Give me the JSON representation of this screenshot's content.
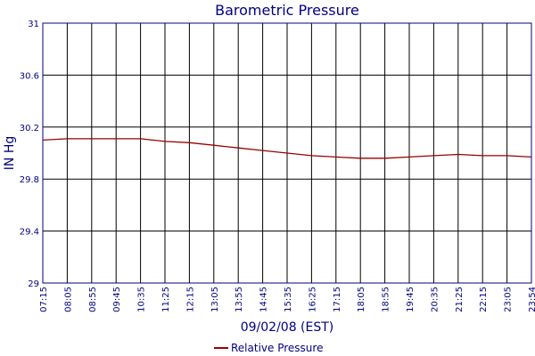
{
  "chart_data": {
    "type": "line",
    "title": "Barometric Pressure",
    "xlabel": "09/02/08 (EST)",
    "ylabel": "IN Hg",
    "x_ticks": [
      "07:15",
      "08:05",
      "08:55",
      "09:45",
      "10:35",
      "11:25",
      "12:15",
      "13:05",
      "13:55",
      "14:45",
      "15:35",
      "16:25",
      "17:15",
      "18:05",
      "18:55",
      "19:45",
      "20:35",
      "21:25",
      "22:15",
      "23:05",
      "23:54"
    ],
    "y_ticks": [
      "29",
      "29.4",
      "29.8",
      "30.2",
      "30.6",
      "31"
    ],
    "ylim": [
      29,
      31
    ],
    "grid": true,
    "legend_position": "bottom-center",
    "colors": {
      "series": "#990000",
      "axis": "#000080",
      "grid": "#000000"
    },
    "series": [
      {
        "name": "Relative Pressure",
        "x": [
          "07:15",
          "08:05",
          "08:55",
          "09:45",
          "10:35",
          "11:25",
          "12:15",
          "13:05",
          "13:55",
          "14:45",
          "15:35",
          "16:25",
          "17:15",
          "18:05",
          "18:55",
          "19:45",
          "20:35",
          "21:25",
          "22:15",
          "23:05",
          "23:54"
        ],
        "values": [
          30.1,
          30.11,
          30.11,
          30.11,
          30.11,
          30.09,
          30.08,
          30.06,
          30.04,
          30.02,
          30.0,
          29.98,
          29.97,
          29.96,
          29.96,
          29.97,
          29.98,
          29.99,
          29.98,
          29.98,
          29.97
        ]
      }
    ]
  }
}
